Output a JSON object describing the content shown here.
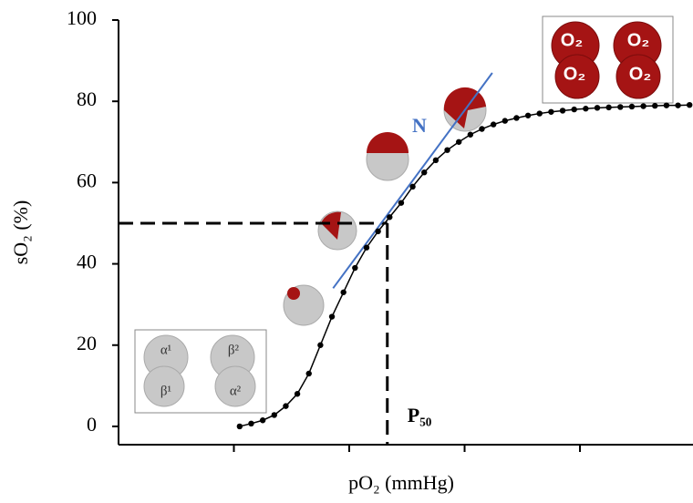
{
  "chart_data": {
    "type": "line",
    "x_label": "pO₂ (mmHg)",
    "y_label": "sO₂ (%)",
    "x": [
      1.05,
      1.15,
      1.25,
      1.35,
      1.45,
      1.55,
      1.65,
      1.75,
      1.85,
      1.95,
      2.05,
      2.15,
      2.25,
      2.35,
      2.45,
      2.55,
      2.65,
      2.75,
      2.85,
      2.95,
      3.05,
      3.15,
      3.25,
      3.35,
      3.45,
      3.55,
      3.65,
      3.75,
      3.85,
      3.95,
      4.05,
      4.15,
      4.25,
      4.35,
      4.45,
      4.55,
      4.65,
      4.75,
      4.85,
      4.95
    ],
    "series": [
      {
        "color": "#000000",
        "values": [
          0,
          0.7,
          1.5,
          2.8,
          5,
          8,
          13,
          20,
          27,
          33,
          39,
          44,
          48,
          51.5,
          55,
          59,
          62.5,
          65.5,
          68,
          70,
          71.8,
          73.2,
          74.3,
          75.2,
          75.9,
          76.5,
          77,
          77.4,
          77.7,
          78,
          78.2,
          78.4,
          78.5,
          78.6,
          78.7,
          78.8,
          78.9,
          79,
          79,
          79.1
        ]
      }
    ],
    "xlim": [
      0,
      4.98
    ],
    "xticks": [
      1,
      2,
      3,
      4
    ],
    "ylim": [
      -4.5,
      100
    ],
    "yticks": [
      0,
      20,
      40,
      60,
      80,
      100
    ],
    "p50": {
      "x": 2.33,
      "y": 50,
      "label": "P₅₀"
    },
    "tangent": {
      "x": [
        1.86,
        3.24
      ],
      "y": [
        34,
        87
      ],
      "color": "#4472c4",
      "label": "N"
    },
    "inset_labels": {
      "deoxy": [
        "α¹",
        "β²",
        "β¹",
        "α²"
      ],
      "oxy": [
        "O₂",
        "O₂",
        "O₂",
        "O₂"
      ]
    }
  }
}
